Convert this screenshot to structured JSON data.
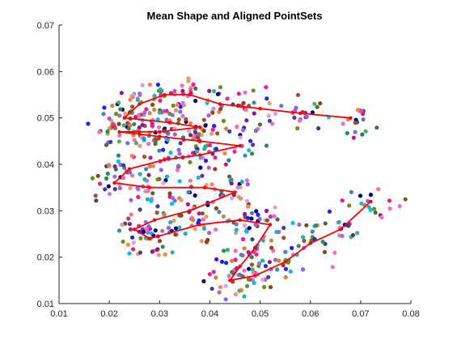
{
  "chart_data": {
    "type": "scatter",
    "title": "Mean Shape and Aligned PointSets",
    "xlabel": "",
    "ylabel": "",
    "xlim": [
      0.01,
      0.08
    ],
    "ylim": [
      0.01,
      0.07
    ],
    "x_ticks": [
      "0.01",
      "0.02",
      "0.03",
      "0.04",
      "0.05",
      "0.06",
      "0.07",
      "0.08"
    ],
    "y_ticks": [
      "0.01",
      "0.02",
      "0.03",
      "0.04",
      "0.05",
      "0.06",
      "0.07"
    ],
    "x_tick_values": [
      0.01,
      0.02,
      0.03,
      0.04,
      0.05,
      0.06,
      0.07,
      0.08
    ],
    "y_tick_values": [
      0.01,
      0.02,
      0.03,
      0.04,
      0.05,
      0.06,
      0.07
    ],
    "grid": false,
    "box": "open-top-right",
    "mean_shape": {
      "color": "#ff0000",
      "x": [
        0.068,
        0.058,
        0.05,
        0.042,
        0.036,
        0.031,
        0.026,
        0.023,
        0.032,
        0.038,
        0.03,
        0.026,
        0.022,
        0.03,
        0.038,
        0.046,
        0.038,
        0.031,
        0.024,
        0.021,
        0.028,
        0.039,
        0.045,
        0.036,
        0.029,
        0.025,
        0.028,
        0.038,
        0.046,
        0.052,
        0.049,
        0.046,
        0.044,
        0.049,
        0.055,
        0.06,
        0.066,
        0.072
      ],
      "y": [
        0.05,
        0.051,
        0.052,
        0.053,
        0.055,
        0.055,
        0.053,
        0.05,
        0.049,
        0.048,
        0.047,
        0.047,
        0.047,
        0.046,
        0.045,
        0.044,
        0.042,
        0.041,
        0.039,
        0.036,
        0.035,
        0.035,
        0.034,
        0.03,
        0.028,
        0.026,
        0.024,
        0.027,
        0.028,
        0.027,
        0.022,
        0.018,
        0.015,
        0.016,
        0.019,
        0.023,
        0.026,
        0.032
      ]
    },
    "point_colors": [
      "#1f1fff",
      "#8b1a8b",
      "#ff69b4",
      "#2e8b57",
      "#9370db",
      "#cd853f",
      "#00008b",
      "#da70d6",
      "#6b8e23",
      "#4682b4",
      "#dda0dd",
      "#ff7f50",
      "#556b2f",
      "#ba55d3",
      "#20b2aa",
      "#8b4513",
      "#c71585",
      "#7b68ee",
      "#3cb371",
      "#a0522d",
      "#00bfff",
      "#e9967a",
      "#483d8b",
      "#ff1493"
    ],
    "aligned_point_spread": 0.0025,
    "aligned_points_per_landmark": 18
  }
}
